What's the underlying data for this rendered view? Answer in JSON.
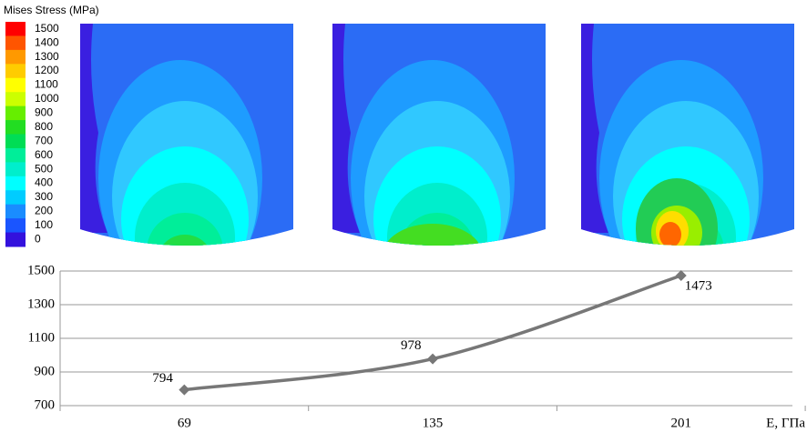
{
  "colorbar": {
    "title": "Mises Stress (MPa)",
    "ticks": [
      1500,
      1400,
      1300,
      1200,
      1100,
      1000,
      900,
      800,
      700,
      600,
      500,
      400,
      300,
      200,
      100,
      0
    ],
    "colors": [
      "#ff0000",
      "#ff5500",
      "#ff9900",
      "#ffcc00",
      "#ffff00",
      "#ccff00",
      "#66ee00",
      "#22dd22",
      "#00dd55",
      "#00ee99",
      "#00eecc",
      "#00ffff",
      "#00ccff",
      "#1a8cff",
      "#1a55ff",
      "#3311dd"
    ]
  },
  "chart_data": {
    "type": "line",
    "x_label": "E, ГПа",
    "categories": [
      "69",
      "135",
      "201"
    ],
    "values": [
      794,
      978,
      1473
    ],
    "color": "#777777",
    "ylim": [
      700,
      1500
    ],
    "yticks": [
      700,
      900,
      1100,
      1300,
      1500
    ],
    "grid": true
  }
}
